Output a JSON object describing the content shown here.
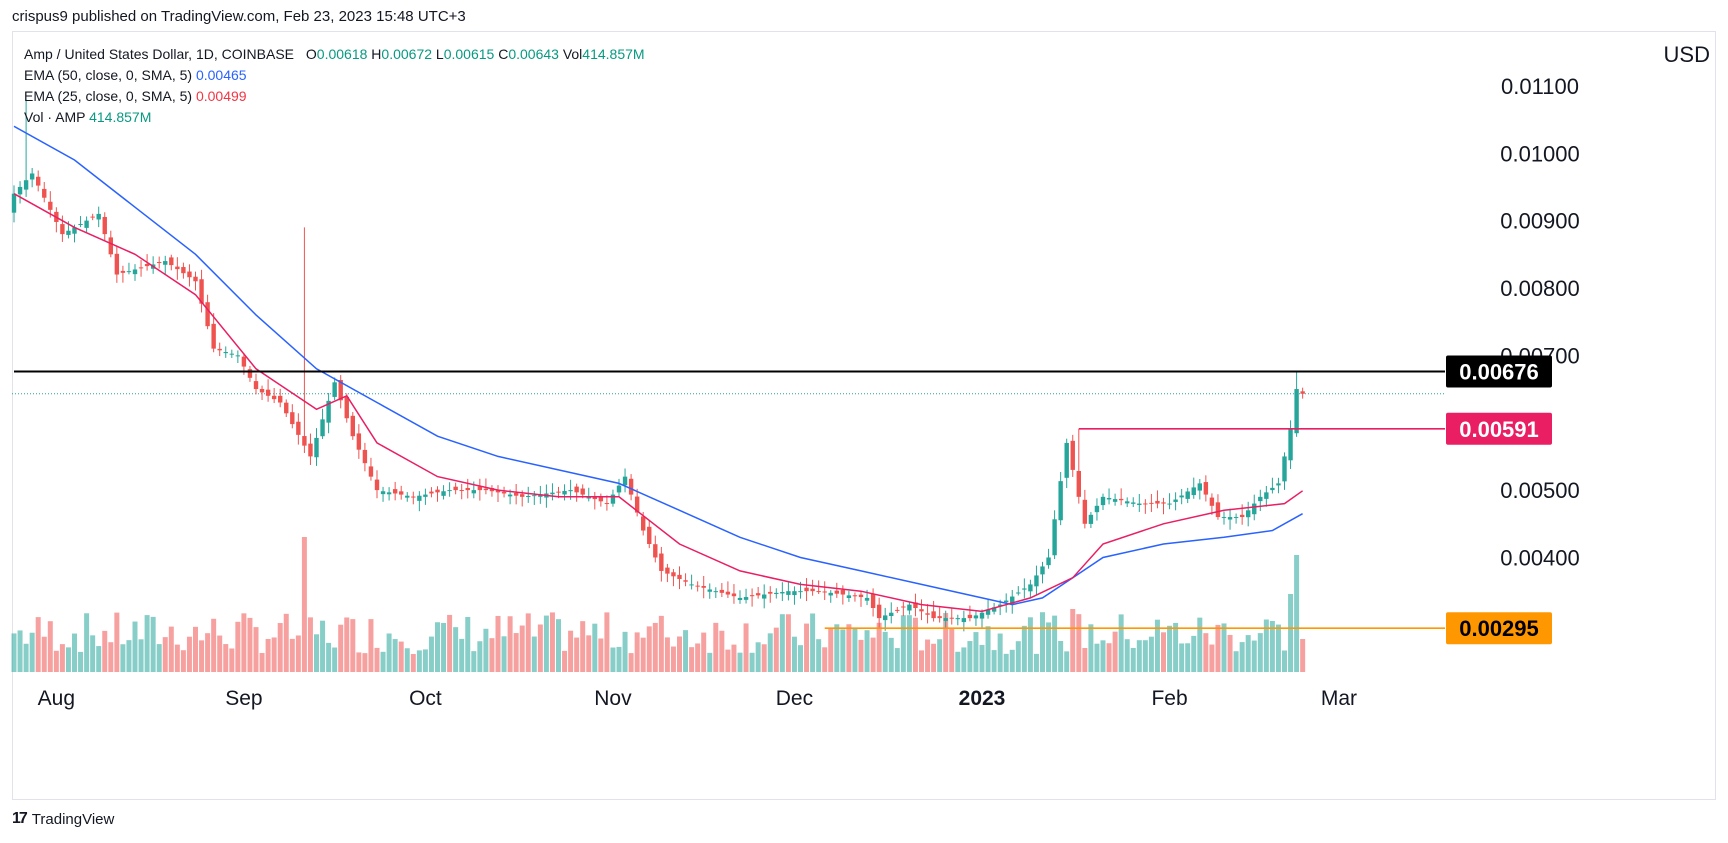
{
  "header": {
    "published": "crispus9 published on TradingView.com, Feb 23, 2023 15:48 UTC+3"
  },
  "legend": {
    "symbol": "Amp / United States Dollar, 1D, COINBASE",
    "o_label": "O",
    "o_value": "0.00618",
    "h_label": "H",
    "h_value": "0.00672",
    "l_label": "L",
    "l_value": "0.00615",
    "c_label": "C",
    "c_value": "0.00643",
    "vol_label": "Vol",
    "vol_value": "414.857M",
    "ema50_label": "EMA (50, close, 0, SMA, 5)",
    "ema50_value": "0.00465",
    "ema25_label": "EMA (25, close, 0, SMA, 5)",
    "ema25_value": "0.00499",
    "vol_ind_label": "Vol · AMP",
    "vol_ind_value": "414.857M"
  },
  "currency": "USD",
  "footer": {
    "brand": "TradingView",
    "logo": "17"
  },
  "colors": {
    "up": "#26a69a",
    "down": "#ef5350",
    "ema50": "#2962ff",
    "ema25": "#e91e63",
    "resistance": "#000000",
    "breakout": "#e91e63",
    "support": "#ff9800"
  },
  "chart_data": {
    "type": "candlestick",
    "title": "Amp / United States Dollar, 1D, COINBASE",
    "ylabel": "USD",
    "ylim": [
      0.0023,
      0.0118
    ],
    "y_ticks": [
      {
        "value": 0.011,
        "label": "0.01100"
      },
      {
        "value": 0.01,
        "label": "0.01000"
      },
      {
        "value": 0.009,
        "label": "0.00900"
      },
      {
        "value": 0.008,
        "label": "0.00800"
      },
      {
        "value": 0.007,
        "label": "0.00700"
      },
      {
        "value": 0.005,
        "label": "0.00500"
      },
      {
        "value": 0.004,
        "label": "0.00400"
      }
    ],
    "x_ticks": [
      {
        "day": 7,
        "label": "Aug"
      },
      {
        "day": 38,
        "label": "Sep"
      },
      {
        "day": 68,
        "label": "Oct"
      },
      {
        "day": 99,
        "label": "Nov"
      },
      {
        "day": 129,
        "label": "Dec"
      },
      {
        "day": 160,
        "label": "2023",
        "bold": true
      },
      {
        "day": 191,
        "label": "Feb"
      },
      {
        "day": 219,
        "label": "Mar"
      }
    ],
    "x_range": [
      0,
      255
    ],
    "last_day": 213,
    "price_lines": [
      {
        "name": "resistance",
        "value": 0.00676,
        "label": "0.00676",
        "from_day": 0,
        "color": "#000000",
        "text_color": "#ffffff"
      },
      {
        "name": "breakout",
        "value": 0.00591,
        "label": "0.00591",
        "from_day": 176,
        "color": "#e91e63",
        "text_color": "#ffffff"
      },
      {
        "name": "support",
        "value": 0.00295,
        "label": "0.00295",
        "from_day": 134,
        "color": "#ff9800",
        "text_color": "#000000"
      }
    ],
    "last_price": 0.00643,
    "anchors": [
      [
        0,
        0.0094
      ],
      [
        3,
        0.0097
      ],
      [
        8,
        0.0088
      ],
      [
        14,
        0.0091
      ],
      [
        17,
        0.0082
      ],
      [
        25,
        0.0084
      ],
      [
        30,
        0.0081
      ],
      [
        33,
        0.0071
      ],
      [
        37,
        0.007
      ],
      [
        40,
        0.0065
      ],
      [
        44,
        0.0063
      ],
      [
        49,
        0.0055
      ],
      [
        53,
        0.0066
      ],
      [
        56,
        0.0058
      ],
      [
        60,
        0.005
      ],
      [
        66,
        0.0049
      ],
      [
        72,
        0.005
      ],
      [
        78,
        0.005
      ],
      [
        84,
        0.0049
      ],
      [
        92,
        0.005
      ],
      [
        98,
        0.0048
      ],
      [
        101,
        0.0052
      ],
      [
        104,
        0.0044
      ],
      [
        107,
        0.0038
      ],
      [
        112,
        0.0036
      ],
      [
        120,
        0.0034
      ],
      [
        128,
        0.0035
      ],
      [
        133,
        0.0035
      ],
      [
        141,
        0.0034
      ],
      [
        143,
        0.0031
      ],
      [
        148,
        0.0033
      ],
      [
        152,
        0.0031
      ],
      [
        158,
        0.0031
      ],
      [
        163,
        0.0033
      ],
      [
        168,
        0.0036
      ],
      [
        171,
        0.004
      ],
      [
        174,
        0.0057
      ],
      [
        177,
        0.0045
      ],
      [
        180,
        0.0049
      ],
      [
        186,
        0.0048
      ],
      [
        191,
        0.0048
      ],
      [
        196,
        0.0051
      ],
      [
        199,
        0.0046
      ],
      [
        203,
        0.0046
      ],
      [
        206,
        0.0049
      ],
      [
        209,
        0.0051
      ],
      [
        211,
        0.0059
      ],
      [
        212,
        0.0065
      ],
      [
        213,
        0.00643
      ]
    ],
    "ema50": [
      [
        0,
        0.0104
      ],
      [
        10,
        0.0099
      ],
      [
        20,
        0.0092
      ],
      [
        30,
        0.0085
      ],
      [
        40,
        0.0076
      ],
      [
        50,
        0.0068
      ],
      [
        60,
        0.0063
      ],
      [
        70,
        0.0058
      ],
      [
        80,
        0.0055
      ],
      [
        90,
        0.0053
      ],
      [
        100,
        0.0051
      ],
      [
        110,
        0.0047
      ],
      [
        120,
        0.0043
      ],
      [
        130,
        0.004
      ],
      [
        140,
        0.0038
      ],
      [
        150,
        0.0036
      ],
      [
        160,
        0.0034
      ],
      [
        165,
        0.0033
      ],
      [
        170,
        0.0034
      ],
      [
        175,
        0.0037
      ],
      [
        180,
        0.004
      ],
      [
        190,
        0.0042
      ],
      [
        200,
        0.0043
      ],
      [
        208,
        0.0044
      ],
      [
        213,
        0.00465
      ]
    ],
    "ema25": [
      [
        0,
        0.0094
      ],
      [
        10,
        0.0089
      ],
      [
        20,
        0.0085
      ],
      [
        30,
        0.0079
      ],
      [
        40,
        0.0068
      ],
      [
        50,
        0.0062
      ],
      [
        55,
        0.0064
      ],
      [
        60,
        0.0057
      ],
      [
        70,
        0.0052
      ],
      [
        80,
        0.005
      ],
      [
        90,
        0.0049
      ],
      [
        100,
        0.0049
      ],
      [
        110,
        0.0042
      ],
      [
        120,
        0.0038
      ],
      [
        130,
        0.0036
      ],
      [
        140,
        0.0035
      ],
      [
        150,
        0.0033
      ],
      [
        160,
        0.0032
      ],
      [
        168,
        0.0034
      ],
      [
        175,
        0.0037
      ],
      [
        180,
        0.0042
      ],
      [
        190,
        0.0045
      ],
      [
        200,
        0.0047
      ],
      [
        210,
        0.0048
      ],
      [
        213,
        0.00499
      ]
    ],
    "volume_spikes": [
      {
        "day": 48,
        "value": 0.9
      },
      {
        "day": 175,
        "value": 0.42
      },
      {
        "day": 207,
        "value": 0.35
      },
      {
        "day": 211,
        "value": 0.52
      },
      {
        "day": 212,
        "value": 0.78
      },
      {
        "day": 213,
        "value": 0.22
      }
    ]
  }
}
